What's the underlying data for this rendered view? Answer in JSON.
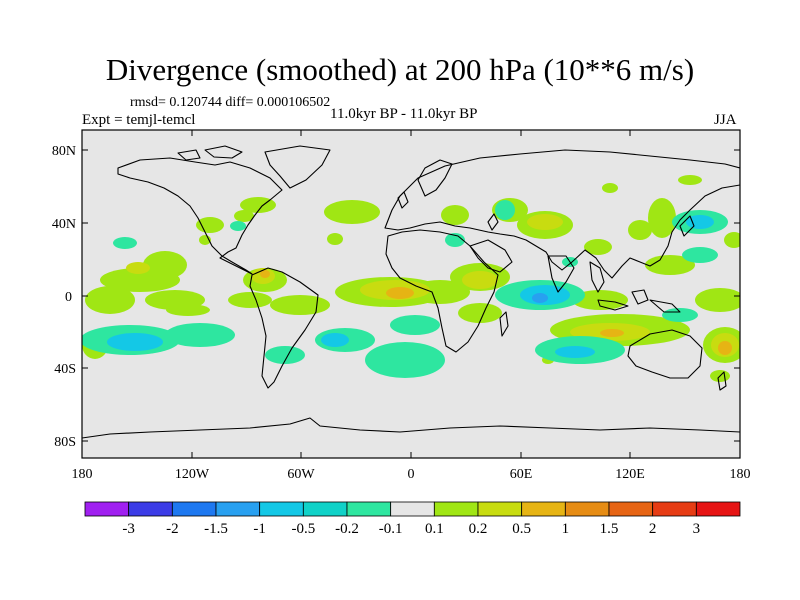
{
  "title": "Divergence (smoothed) at 200 hPa (10**6 m/s)",
  "stats": "rmsd= 0.120744 diff= 0.000106502",
  "experiment": "Expt = temjl-temcl",
  "period": "11.0kyr BP - 11.0kyr BP",
  "season": "JJA",
  "y_ticks": [
    "80N",
    "40N",
    "0",
    "40S",
    "80S"
  ],
  "x_ticks": [
    "180",
    "120W",
    "60W",
    "0",
    "60E",
    "120E",
    "180"
  ],
  "colorbar": {
    "levels": [
      "-3",
      "-2",
      "-1.5",
      "-1",
      "-0.5",
      "-0.2",
      "-0.1",
      "0.1",
      "0.2",
      "0.5",
      "1",
      "1.5",
      "2",
      "3"
    ],
    "colors": [
      "#a020f0",
      "#3c3ce6",
      "#1e78f0",
      "#28a0f0",
      "#14c8e6",
      "#10d2c8",
      "#2ee6a0",
      "#e6e6e6",
      "#a0e614",
      "#c8dc10",
      "#e6b414",
      "#e68c14",
      "#e66414",
      "#e63c14",
      "#e61414"
    ]
  },
  "colors": {
    "ocean_background": "#e6e6e6",
    "positive_weak": "#a0e614",
    "positive_mid": "#c8dc10",
    "positive_strong": "#e6b414",
    "negative_weak": "#2ee6a0",
    "negative_mid": "#14c8e6",
    "negative_strong": "#28a0f0"
  }
}
